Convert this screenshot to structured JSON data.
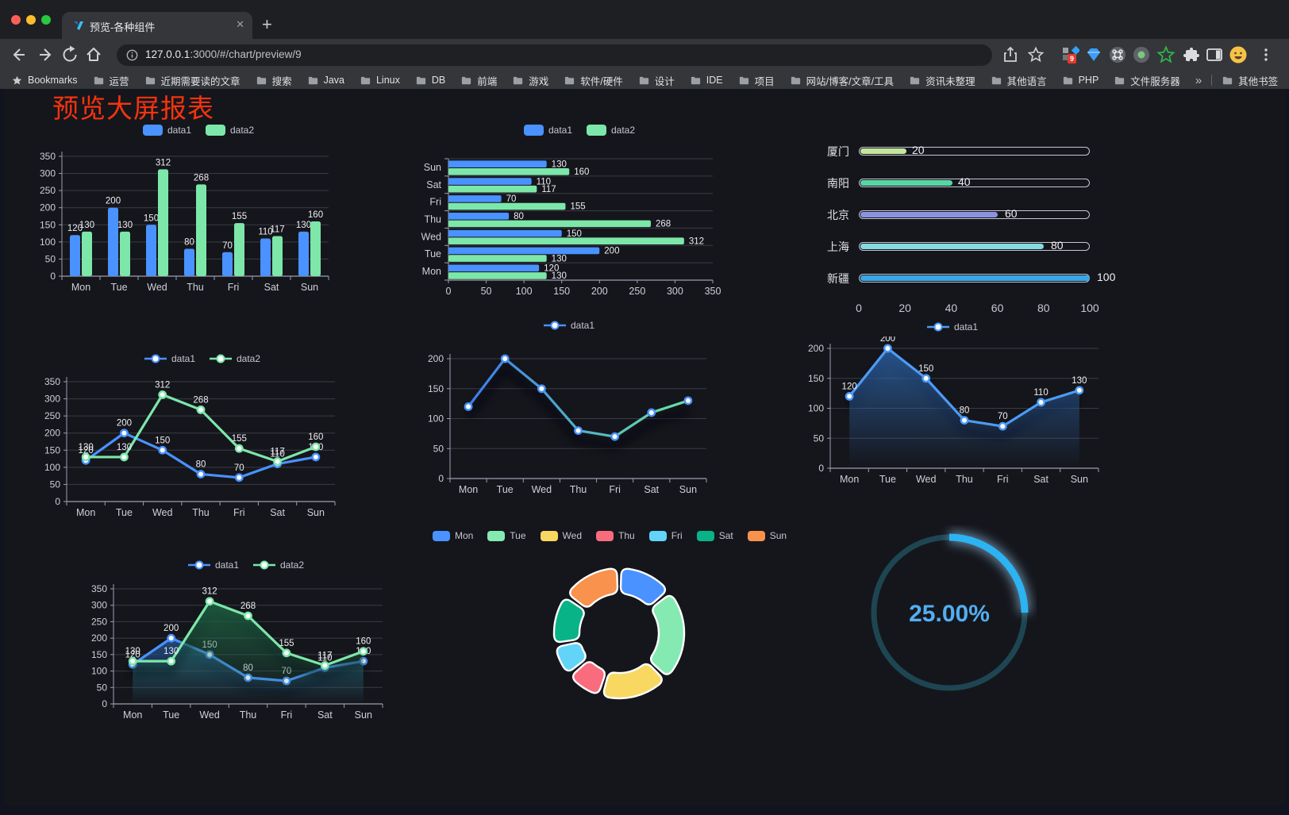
{
  "browser": {
    "tab": {
      "title": "预览-各种组件",
      "close_glyph": "✕",
      "new_tab_glyph": "+"
    },
    "address": {
      "url_host": "127.0.0.1",
      "url_rest": ":3000/#/chart/preview/9"
    },
    "extension_badge": "9",
    "bookmarks_label": "Bookmarks",
    "bookmarks": [
      "运营",
      "近期需要读的文章",
      "搜索",
      "Java",
      "Linux",
      "DB",
      "前端",
      "游戏",
      "软件/硬件",
      "设计",
      "IDE",
      "项目",
      "网站/博客/文章/工具",
      "资讯未整理",
      "其他语言",
      "PHP",
      "文件服务器"
    ],
    "bookmarks_overflow_glyph": "»",
    "other_bookmarks": "其他书签"
  },
  "page": {
    "title": "预览大屏报表",
    "title_color": "#f6330d"
  },
  "chart_data": [
    {
      "id": "grouped-bar",
      "type": "bar",
      "categories": [
        "Mon",
        "Tue",
        "Wed",
        "Thu",
        "Fri",
        "Sat",
        "Sun"
      ],
      "series": [
        {
          "name": "data1",
          "color": "#4992ff",
          "values": [
            120,
            200,
            150,
            80,
            70,
            110,
            130
          ]
        },
        {
          "name": "data2",
          "color": "#7ce7a9",
          "values": [
            130,
            130,
            312,
            268,
            155,
            117,
            160
          ]
        }
      ],
      "ylim": [
        0,
        350
      ],
      "yticks": [
        0,
        50,
        100,
        150,
        200,
        250,
        300,
        350
      ],
      "legend": true,
      "labels": true,
      "grid": true
    },
    {
      "id": "horizontal-bar",
      "type": "hbar",
      "categories": [
        "Mon",
        "Tue",
        "Wed",
        "Thu",
        "Fri",
        "Sat",
        "Sun"
      ],
      "series": [
        {
          "name": "data1",
          "color": "#4992ff",
          "values": [
            120,
            200,
            150,
            80,
            70,
            110,
            130
          ]
        },
        {
          "name": "data2",
          "color": "#7ce7a9",
          "values": [
            130,
            130,
            312,
            268,
            155,
            117,
            160
          ]
        }
      ],
      "xlim": [
        0,
        350
      ],
      "xticks": [
        0,
        50,
        100,
        150,
        200,
        250,
        300,
        350
      ],
      "legend": true,
      "labels": true,
      "grid": true
    },
    {
      "id": "city-progress",
      "type": "progress",
      "max": 100,
      "items": [
        {
          "label": "厦门",
          "value": 20,
          "color": "#c3e79d"
        },
        {
          "label": "南阳",
          "value": 40,
          "color": "#57d6a4"
        },
        {
          "label": "北京",
          "value": 60,
          "color": "#8b93e1"
        },
        {
          "label": "上海",
          "value": 80,
          "color": "#83dce0"
        },
        {
          "label": "新疆",
          "value": 100,
          "color": "#38a7e8"
        }
      ],
      "xticks": [
        0,
        20,
        40,
        60,
        80,
        100
      ]
    },
    {
      "id": "two-line",
      "type": "line",
      "categories": [
        "Mon",
        "Tue",
        "Wed",
        "Thu",
        "Fri",
        "Sat",
        "Sun"
      ],
      "series": [
        {
          "name": "data1",
          "color": "#4992ff",
          "values": [
            120,
            200,
            150,
            80,
            70,
            110,
            130
          ]
        },
        {
          "name": "data2",
          "color": "#7ce7a9",
          "values": [
            130,
            130,
            312,
            268,
            155,
            117,
            160
          ]
        }
      ],
      "ylim": [
        0,
        350
      ],
      "yticks": [
        0,
        50,
        100,
        150,
        200,
        250,
        300,
        350
      ],
      "legend": true,
      "labels": true,
      "grid": true
    },
    {
      "id": "gradient-line",
      "type": "line",
      "categories": [
        "Mon",
        "Tue",
        "Wed",
        "Thu",
        "Fri",
        "Sat",
        "Sun"
      ],
      "series": [
        {
          "name": "data1",
          "color": "#4992ff",
          "gradient": [
            "#3a7bed",
            "#68e3a4"
          ],
          "values": [
            120,
            200,
            150,
            80,
            70,
            110,
            130
          ]
        }
      ],
      "ylim": [
        0,
        200
      ],
      "yticks": [
        0,
        50,
        100,
        150,
        200
      ],
      "legend": true,
      "labels": false,
      "shadow": true,
      "grid": true
    },
    {
      "id": "single-area",
      "type": "area",
      "categories": [
        "Mon",
        "Tue",
        "Wed",
        "Thu",
        "Fri",
        "Sat",
        "Sun"
      ],
      "series": [
        {
          "name": "data1",
          "color": "#4c9bf7",
          "fill": [
            "rgba(47,106,178,0.75)",
            "rgba(47,106,178,0)"
          ],
          "values": [
            120,
            200,
            150,
            80,
            70,
            110,
            130
          ]
        }
      ],
      "ylim": [
        0,
        200
      ],
      "yticks": [
        0,
        50,
        100,
        150,
        200
      ],
      "legend": true,
      "labels": true,
      "shadow": true,
      "grid": true
    },
    {
      "id": "two-area",
      "type": "area",
      "categories": [
        "Mon",
        "Tue",
        "Wed",
        "Thu",
        "Fri",
        "Sat",
        "Sun"
      ],
      "series": [
        {
          "name": "data1",
          "color": "#4992ff",
          "fill": [
            "rgba(44,98,166,0.70)",
            "rgba(44,98,166,0)"
          ],
          "values": [
            120,
            200,
            150,
            80,
            70,
            110,
            130
          ]
        },
        {
          "name": "data2",
          "color": "#7ce7a9",
          "fill": [
            "rgba(32,112,74,0.75)",
            "rgba(32,112,74,0)"
          ],
          "values": [
            130,
            130,
            312,
            268,
            155,
            117,
            160
          ]
        }
      ],
      "ylim": [
        0,
        350
      ],
      "yticks": [
        0,
        50,
        100,
        150,
        200,
        250,
        300,
        350
      ],
      "legend": true,
      "labels": true,
      "shadow": true,
      "grid": true
    },
    {
      "id": "week-donut",
      "type": "pie",
      "legend": true,
      "items": [
        {
          "label": "Mon",
          "value": 120,
          "color": "#4992ff"
        },
        {
          "label": "Tue",
          "value": 200,
          "color": "#85eab1"
        },
        {
          "label": "Wed",
          "value": 150,
          "color": "#f8d861"
        },
        {
          "label": "Thu",
          "value": 80,
          "color": "#f96c7e"
        },
        {
          "label": "Fri",
          "value": 70,
          "color": "#62d4f8"
        },
        {
          "label": "Sat",
          "value": 110,
          "color": "#09b388"
        },
        {
          "label": "Sun",
          "value": 130,
          "color": "#f8924d"
        }
      ]
    },
    {
      "id": "percent-gauge",
      "type": "gauge",
      "label": "25.00%",
      "percent": 25,
      "color": "#2bb3f2",
      "track_color": "#1d4652",
      "text_color": "#53aef0"
    }
  ]
}
